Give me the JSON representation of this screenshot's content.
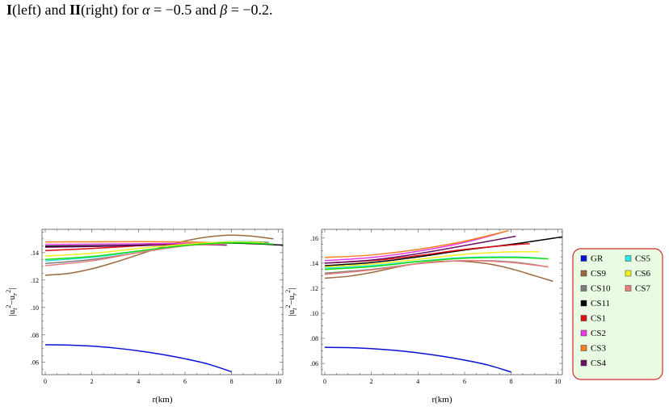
{
  "caption": {
    "p1": "I",
    "p2": "(left) and ",
    "p3": "II",
    "p4": "(right) for ",
    "p5": "α",
    "p6": " = −0.5 and ",
    "p7": "β",
    "p8": " = −0.2."
  },
  "legend": [
    {
      "name": "GR",
      "color": "#0a10d8"
    },
    {
      "name": "CS9",
      "color": "#9b6a3c"
    },
    {
      "name": "CS10",
      "color": "#7c7c7c"
    },
    {
      "name": "CS11",
      "color": "#000000"
    },
    {
      "name": "CS1",
      "color": "#e01010"
    },
    {
      "name": "CS2",
      "color": "#e83ae8"
    },
    {
      "name": "CS3",
      "color": "#f08020"
    },
    {
      "name": "CS4",
      "color": "#6a1066"
    },
    {
      "name": "CS5",
      "color": "#36e0e8"
    },
    {
      "name": "CS6",
      "color": "#f0f020"
    },
    {
      "name": "CS7",
      "color": "#e88080"
    }
  ],
  "chart_data": [
    {
      "type": "line",
      "title": "",
      "xlabel": "r(km)",
      "ylabel": "|u_t^2 - u_r^2|",
      "xlim": [
        0,
        10.2
      ],
      "ylim": [
        0.051,
        0.157
      ],
      "xticks": [
        0,
        2,
        4,
        6,
        8,
        10
      ],
      "yticks": [
        0.06,
        0.08,
        0.1,
        0.12,
        0.14
      ],
      "series": [
        {
          "name": "GR",
          "color": "#0a10d8",
          "x": [
            0,
            1,
            2,
            3,
            4,
            5,
            6,
            7,
            8
          ],
          "y": [
            0.0728,
            0.0726,
            0.0718,
            0.0704,
            0.0684,
            0.0658,
            0.0626,
            0.0587,
            0.0531
          ]
        },
        {
          "name": "CS9",
          "color": "#9b6a3c",
          "x": [
            0,
            1,
            2,
            3,
            4,
            5,
            6,
            7,
            8,
            9,
            9.8
          ],
          "y": [
            0.1235,
            0.1248,
            0.1282,
            0.133,
            0.1385,
            0.144,
            0.1485,
            0.1515,
            0.1527,
            0.1518,
            0.15
          ]
        },
        {
          "name": "CS10",
          "color": "#7c7c7c",
          "x": [
            0,
            2,
            4,
            6,
            8,
            9.6
          ],
          "y": [
            0.132,
            0.135,
            0.14,
            0.145,
            0.148,
            0.1475
          ]
        },
        {
          "name": "CS11",
          "color": "#000000",
          "x": [
            0,
            2,
            4,
            6,
            8,
            10.2
          ],
          "y": [
            0.1448,
            0.145,
            0.1455,
            0.1462,
            0.147,
            0.1455
          ]
        },
        {
          "name": "CS1",
          "color": "#e01010",
          "x": [
            0,
            2,
            4,
            6,
            7.5
          ],
          "y": [
            0.1415,
            0.143,
            0.145,
            0.1465,
            0.146
          ]
        },
        {
          "name": "CS2",
          "color": "#e83ae8",
          "x": [
            0,
            2,
            4,
            6,
            7.6
          ],
          "y": [
            0.146,
            0.1462,
            0.1465,
            0.1468,
            0.1462
          ]
        },
        {
          "name": "CS3",
          "color": "#f08020",
          "x": [
            0,
            2,
            4,
            6,
            7.8
          ],
          "y": [
            0.1478,
            0.1479,
            0.148,
            0.1478,
            0.147
          ]
        },
        {
          "name": "CS4",
          "color": "#6a1066",
          "x": [
            0,
            2,
            4,
            6,
            7.8
          ],
          "y": [
            0.144,
            0.1445,
            0.1452,
            0.1458,
            0.1455
          ]
        },
        {
          "name": "CS5",
          "color": "#36e0e8",
          "x": [
            0,
            2,
            4,
            6,
            8,
            9.2
          ],
          "y": [
            0.134,
            0.1365,
            0.141,
            0.1455,
            0.148,
            0.1475
          ]
        },
        {
          "name": "CS6",
          "color": "#f0f020",
          "x": [
            0,
            2,
            4,
            6,
            8,
            9.4
          ],
          "y": [
            0.1375,
            0.1395,
            0.143,
            0.146,
            0.1478,
            0.1472
          ]
        },
        {
          "name": "CS7",
          "color": "#e88080",
          "x": [
            0,
            2,
            4,
            6,
            7.7
          ],
          "y": [
            0.1305,
            0.134,
            0.14,
            0.145,
            0.1462
          ]
        },
        {
          "name": "",
          "color": "#10e010",
          "x": [
            0,
            2,
            4,
            6,
            8,
            9.8
          ],
          "y": [
            0.135,
            0.1372,
            0.1412,
            0.1452,
            0.1472,
            0.1462
          ]
        }
      ]
    },
    {
      "type": "line",
      "title": "",
      "xlabel": "r(km)",
      "ylabel": "|u_t^2 - u_r^2|",
      "xlim": [
        0,
        10.2
      ],
      "ylim": [
        0.051,
        0.167
      ],
      "xticks": [
        0,
        2,
        4,
        6,
        8,
        10
      ],
      "yticks": [
        0.06,
        0.08,
        0.1,
        0.12,
        0.14,
        0.16
      ],
      "series": [
        {
          "name": "GR",
          "color": "#0a10d8",
          "x": [
            0,
            1,
            2,
            3,
            4,
            5,
            6,
            7,
            8
          ],
          "y": [
            0.0728,
            0.0726,
            0.0718,
            0.0704,
            0.0684,
            0.0658,
            0.0626,
            0.0587,
            0.0531
          ]
        },
        {
          "name": "CS9",
          "color": "#9b6a3c",
          "x": [
            0,
            1,
            2,
            3,
            4,
            5,
            6,
            7,
            8,
            9,
            9.8
          ],
          "y": [
            0.128,
            0.1295,
            0.1325,
            0.1365,
            0.1398,
            0.1415,
            0.1415,
            0.1395,
            0.1355,
            0.13,
            0.1255
          ]
        },
        {
          "name": "CS10",
          "color": "#7c7c7c",
          "x": [
            0,
            2,
            4,
            6,
            8,
            9.6
          ],
          "y": [
            0.132,
            0.135,
            0.1395,
            0.142,
            0.141,
            0.137
          ]
        },
        {
          "name": "CS11",
          "color": "#000000",
          "x": [
            0,
            2,
            4,
            6,
            8,
            10.2
          ],
          "y": [
            0.138,
            0.1405,
            0.145,
            0.1505,
            0.155,
            0.161
          ]
        },
        {
          "name": "CS1",
          "color": "#e01010",
          "x": [
            0,
            2,
            4,
            6,
            8,
            8.8
          ],
          "y": [
            0.14,
            0.142,
            0.146,
            0.151,
            0.1545,
            0.1555
          ]
        },
        {
          "name": "CS2",
          "color": "#e83ae8",
          "x": [
            0,
            2,
            4,
            6,
            7.8
          ],
          "y": [
            0.142,
            0.1445,
            0.1495,
            0.1565,
            0.1655
          ]
        },
        {
          "name": "CS3",
          "color": "#f08020",
          "x": [
            0,
            2,
            4,
            6,
            7.9
          ],
          "y": [
            0.1445,
            0.1465,
            0.151,
            0.1575,
            0.166
          ]
        },
        {
          "name": "CS4",
          "color": "#6a1066",
          "x": [
            0,
            2,
            4,
            6,
            8.2
          ],
          "y": [
            0.14,
            0.1425,
            0.1475,
            0.154,
            0.1615
          ]
        },
        {
          "name": "CS5",
          "color": "#36e0e8",
          "x": [
            0,
            2,
            4,
            6,
            8,
            9.3
          ],
          "y": [
            0.136,
            0.138,
            0.1415,
            0.1445,
            0.145,
            0.144
          ]
        },
        {
          "name": "CS6",
          "color": "#f0f020",
          "x": [
            0,
            2,
            4,
            6,
            8,
            9.2
          ],
          "y": [
            0.137,
            0.1392,
            0.143,
            0.147,
            0.149,
            0.149
          ]
        },
        {
          "name": "CS7",
          "color": "#e88080",
          "x": [
            0,
            2,
            4,
            6,
            8,
            9.6
          ],
          "y": [
            0.131,
            0.1345,
            0.1395,
            0.142,
            0.1405,
            0.137
          ]
        },
        {
          "name": "",
          "color": "#10e010",
          "x": [
            0,
            2,
            4,
            6,
            8,
            9.6
          ],
          "y": [
            0.135,
            0.1372,
            0.1412,
            0.144,
            0.1445,
            0.1435
          ]
        }
      ]
    }
  ]
}
